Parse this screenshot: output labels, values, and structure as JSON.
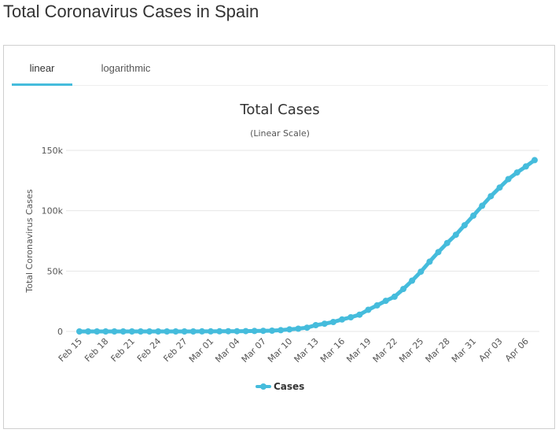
{
  "page": {
    "title": "Total Coronavirus Cases in Spain"
  },
  "tabs": [
    {
      "label": "linear",
      "active": true
    },
    {
      "label": "logarithmic",
      "active": false
    }
  ],
  "colors": {
    "series": "#45bcdc",
    "tab_active": "#45bcdc",
    "grid": "#e6e6e6",
    "text": "#333333",
    "axis_text": "#555555"
  },
  "chart_data": {
    "type": "line",
    "title": "Total Cases",
    "subtitle": "(Linear Scale)",
    "ylabel": "Total Coronavirus Cases",
    "xlabel": "",
    "ylim": [
      0,
      150000
    ],
    "y_ticks": [
      0,
      50000,
      100000,
      150000
    ],
    "y_tick_labels": [
      "0",
      "50k",
      "100k",
      "150k"
    ],
    "grid": true,
    "legend": "bottom-center",
    "x_tick_labels": [
      "Feb 15",
      "Feb 18",
      "Feb 21",
      "Feb 24",
      "Feb 27",
      "Mar 01",
      "Mar 04",
      "Mar 07",
      "Mar 10",
      "Mar 13",
      "Mar 16",
      "Mar 19",
      "Mar 22",
      "Mar 25",
      "Mar 28",
      "Mar 31",
      "Apr 03",
      "Apr 06"
    ],
    "categories": [
      "Feb 15",
      "Feb 16",
      "Feb 17",
      "Feb 18",
      "Feb 19",
      "Feb 20",
      "Feb 21",
      "Feb 22",
      "Feb 23",
      "Feb 24",
      "Feb 25",
      "Feb 26",
      "Feb 27",
      "Feb 28",
      "Feb 29",
      "Mar 01",
      "Mar 02",
      "Mar 03",
      "Mar 04",
      "Mar 05",
      "Mar 06",
      "Mar 07",
      "Mar 08",
      "Mar 09",
      "Mar 10",
      "Mar 11",
      "Mar 12",
      "Mar 13",
      "Mar 14",
      "Mar 15",
      "Mar 16",
      "Mar 17",
      "Mar 18",
      "Mar 19",
      "Mar 20",
      "Mar 21",
      "Mar 22",
      "Mar 23",
      "Mar 24",
      "Mar 25",
      "Mar 26",
      "Mar 27",
      "Mar 28",
      "Mar 29",
      "Mar 30",
      "Mar 31",
      "Apr 01",
      "Apr 02",
      "Apr 03",
      "Apr 04",
      "Apr 05",
      "Apr 06",
      "Apr 07"
    ],
    "series": [
      {
        "name": "Cases",
        "values": [
          2,
          2,
          2,
          2,
          2,
          2,
          2,
          2,
          2,
          2,
          6,
          13,
          15,
          32,
          45,
          84,
          120,
          165,
          222,
          259,
          400,
          500,
          673,
          1073,
          1695,
          2277,
          3146,
          5232,
          6391,
          7798,
          9942,
          11748,
          13910,
          17963,
          21571,
          25374,
          28768,
          35136,
          42058,
          49515,
          57786,
          65719,
          73235,
          80110,
          87956,
          95923,
          104118,
          112065,
          119199,
          126168,
          131646,
          136675,
          141942
        ]
      }
    ]
  }
}
